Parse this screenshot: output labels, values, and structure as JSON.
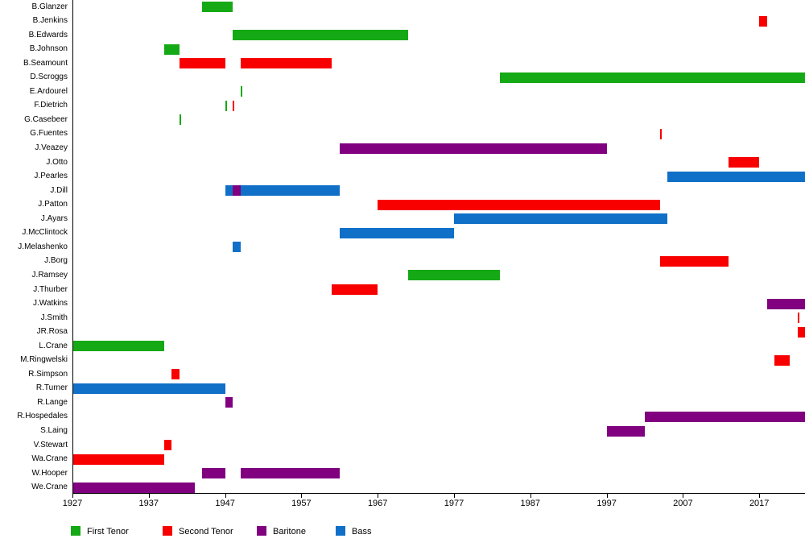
{
  "chart_data": {
    "type": "bar",
    "subtype": "gantt-timeline",
    "title": "",
    "xlabel": "",
    "ylabel": "",
    "grid": false,
    "legend_position": "bottom",
    "x_range": [
      1927,
      2023
    ],
    "x_ticks": [
      "1927",
      "1937",
      "1947",
      "1957",
      "1967",
      "1977",
      "1987",
      "1997",
      "2007",
      "2017"
    ],
    "roles": [
      {
        "label": "First Tenor",
        "color": "#15a915"
      },
      {
        "label": "Second Tenor",
        "color": "#f80000"
      },
      {
        "label": "Baritone",
        "color": "#800080"
      },
      {
        "label": "Bass",
        "color": "#1070c8"
      }
    ],
    "people": [
      {
        "name": "B.Glanzer",
        "segments": [
          {
            "role": "First Tenor",
            "start": 1944,
            "end": 1948
          }
        ]
      },
      {
        "name": "B.Jenkins",
        "segments": [
          {
            "role": "Second Tenor",
            "start": 2017,
            "end": 2018
          }
        ]
      },
      {
        "name": "B.Edwards",
        "segments": [
          {
            "role": "First Tenor",
            "start": 1948,
            "end": 1971
          }
        ]
      },
      {
        "name": "B.Johnson",
        "segments": [
          {
            "role": "First Tenor",
            "start": 1939,
            "end": 1941
          }
        ]
      },
      {
        "name": "B.Seamount",
        "segments": [
          {
            "role": "Second Tenor",
            "start": 1941,
            "end": 1947
          },
          {
            "role": "Second Tenor",
            "start": 1949,
            "end": 1961
          }
        ]
      },
      {
        "name": "D.Scroggs",
        "segments": [
          {
            "role": "First Tenor",
            "start": 1983,
            "end": 2023
          }
        ]
      },
      {
        "name": "E.Ardourel",
        "segments": [
          {
            "role": "First Tenor",
            "start": 1949,
            "end": 1949
          }
        ]
      },
      {
        "name": "F.Dietrich",
        "segments": [
          {
            "role": "First Tenor",
            "start": 1947,
            "end": 1947
          },
          {
            "role": "Second Tenor",
            "start": 1948,
            "end": 1948
          }
        ]
      },
      {
        "name": "G.Casebeer",
        "segments": [
          {
            "role": "First Tenor",
            "start": 1941,
            "end": 1941
          }
        ]
      },
      {
        "name": "G.Fuentes",
        "segments": [
          {
            "role": "Second Tenor",
            "start": 2004,
            "end": 2004
          }
        ]
      },
      {
        "name": "J.Veazey",
        "segments": [
          {
            "role": "Baritone",
            "start": 1962,
            "end": 1997
          }
        ]
      },
      {
        "name": "J.Otto",
        "segments": [
          {
            "role": "Second Tenor",
            "start": 2013,
            "end": 2017
          }
        ]
      },
      {
        "name": "J.Pearles",
        "segments": [
          {
            "role": "Bass",
            "start": 2005,
            "end": 2023
          }
        ]
      },
      {
        "name": "J.Dill",
        "segments": [
          {
            "role": "Bass",
            "start": 1947,
            "end": 1948
          },
          {
            "role": "Baritone",
            "start": 1948,
            "end": 1949
          },
          {
            "role": "Bass",
            "start": 1949,
            "end": 1962
          }
        ]
      },
      {
        "name": "J.Patton",
        "segments": [
          {
            "role": "Second Tenor",
            "start": 1967,
            "end": 2004
          }
        ]
      },
      {
        "name": "J.Ayars",
        "segments": [
          {
            "role": "Bass",
            "start": 1977,
            "end": 2005
          }
        ]
      },
      {
        "name": "J.McClintock",
        "segments": [
          {
            "role": "Bass",
            "start": 1962,
            "end": 1977
          }
        ]
      },
      {
        "name": "J.Melashenko",
        "segments": [
          {
            "role": "Bass",
            "start": 1948,
            "end": 1949
          }
        ]
      },
      {
        "name": "J.Borg",
        "segments": [
          {
            "role": "Second Tenor",
            "start": 2004,
            "end": 2013
          }
        ]
      },
      {
        "name": "J.Ramsey",
        "segments": [
          {
            "role": "First Tenor",
            "start": 1971,
            "end": 1983
          }
        ]
      },
      {
        "name": "J.Thurber",
        "segments": [
          {
            "role": "Second Tenor",
            "start": 1961,
            "end": 1967
          }
        ]
      },
      {
        "name": "J.Watkins",
        "segments": [
          {
            "role": "Baritone",
            "start": 2018,
            "end": 2023
          }
        ]
      },
      {
        "name": "J.Smith",
        "segments": [
          {
            "role": "Second Tenor",
            "start": 2022,
            "end": 2022
          }
        ]
      },
      {
        "name": "JR.Rosa",
        "segments": [
          {
            "role": "Second Tenor",
            "start": 2022,
            "end": 2023
          }
        ]
      },
      {
        "name": "L.Crane",
        "segments": [
          {
            "role": "First Tenor",
            "start": 1927,
            "end": 1939
          }
        ]
      },
      {
        "name": "M.Ringwelski",
        "segments": [
          {
            "role": "Second Tenor",
            "start": 2019,
            "end": 2021
          }
        ]
      },
      {
        "name": "R.Simpson",
        "segments": [
          {
            "role": "Second Tenor",
            "start": 1940,
            "end": 1941
          }
        ]
      },
      {
        "name": "R.Turner",
        "segments": [
          {
            "role": "Bass",
            "start": 1927,
            "end": 1947
          }
        ]
      },
      {
        "name": "R.Lange",
        "segments": [
          {
            "role": "Baritone",
            "start": 1947,
            "end": 1948
          }
        ]
      },
      {
        "name": "R.Hospedales",
        "segments": [
          {
            "role": "Baritone",
            "start": 2002,
            "end": 2023
          }
        ]
      },
      {
        "name": "S.Laing",
        "segments": [
          {
            "role": "Baritone",
            "start": 1997,
            "end": 2002
          }
        ]
      },
      {
        "name": "V.Stewart",
        "segments": [
          {
            "role": "Second Tenor",
            "start": 1939,
            "end": 1940
          }
        ]
      },
      {
        "name": "Wa.Crane",
        "segments": [
          {
            "role": "Second Tenor",
            "start": 1927,
            "end": 1939
          }
        ]
      },
      {
        "name": "W.Hooper",
        "segments": [
          {
            "role": "Baritone",
            "start": 1944,
            "end": 1947
          },
          {
            "role": "Baritone",
            "start": 1949,
            "end": 1962
          }
        ]
      },
      {
        "name": "We.Crane",
        "segments": [
          {
            "role": "Baritone",
            "start": 1927,
            "end": 1943
          }
        ]
      }
    ]
  }
}
